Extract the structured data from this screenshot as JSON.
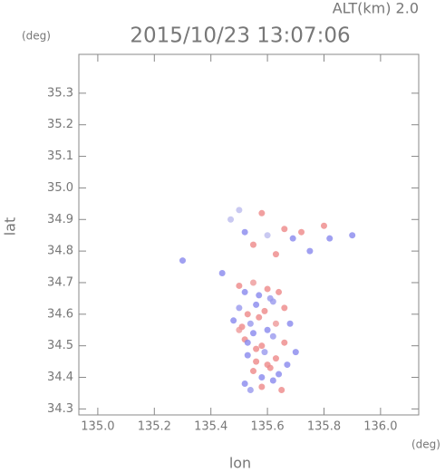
{
  "chart_data": {
    "type": "scatter",
    "title": "2015/10/23 13:07:06",
    "subtitle": "ALT(km) 2.0",
    "x_label": "lon",
    "y_label": "lat",
    "x_unit": "(deg)",
    "y_unit": "(deg)",
    "xlim": [
      134.933,
      136.135
    ],
    "ylim": [
      34.281,
      35.423
    ],
    "xticks": [
      {
        "value": 135,
        "label": "135.0"
      },
      135.2,
      135.4,
      135.6,
      135.8,
      {
        "value": 136,
        "label": "136.0"
      }
    ],
    "yticks": [
      34.3,
      34.4,
      34.5,
      34.6,
      34.7,
      34.8,
      34.9,
      {
        "value": 35,
        "label": "35.0"
      },
      35.1,
      35.2,
      35.3
    ],
    "x": [
      135.3,
      135.44,
      135.47,
      135.5,
      135.52,
      135.55,
      135.58,
      135.6,
      135.63,
      135.66,
      135.69,
      135.72,
      135.75,
      135.8,
      135.82,
      135.9,
      135.5,
      135.52,
      135.55,
      135.57,
      135.6,
      135.62,
      135.64,
      135.5,
      135.53,
      135.56,
      135.59,
      135.61,
      135.66,
      135.48,
      135.51,
      135.54,
      135.57,
      135.6,
      135.63,
      135.52,
      135.55,
      135.58,
      135.62,
      135.66,
      135.7,
      135.53,
      135.56,
      135.59,
      135.63,
      135.67,
      135.55,
      135.58,
      135.61,
      135.64,
      135.52,
      135.54,
      135.58,
      135.62,
      135.65,
      135.5,
      135.53,
      135.56,
      135.6,
      135.68
    ],
    "values": [
      34.77,
      34.73,
      34.9,
      34.93,
      34.86,
      34.82,
      34.92,
      34.85,
      34.79,
      34.87,
      34.84,
      34.86,
      34.8,
      34.88,
      34.84,
      34.85,
      34.69,
      34.67,
      34.7,
      34.66,
      34.68,
      34.64,
      34.67,
      34.62,
      34.6,
      34.63,
      34.61,
      34.65,
      34.62,
      34.58,
      34.56,
      34.57,
      34.59,
      34.55,
      34.57,
      34.52,
      34.54,
      34.5,
      34.53,
      34.51,
      34.48,
      34.47,
      34.45,
      34.48,
      34.46,
      34.44,
      34.42,
      34.4,
      34.43,
      34.41,
      34.38,
      34.36,
      34.37,
      34.39,
      34.36,
      34.55,
      34.51,
      34.49,
      34.44,
      34.57
    ],
    "colors": [
      "#8888ee",
      "#8888ee",
      "#bbbbee",
      "#bbbbee",
      "#8888ee",
      "#ee8888",
      "#ee8888",
      "#bbbbee",
      "#ee8888",
      "#ee8888",
      "#8888ee",
      "#ee8888",
      "#8888ee",
      "#ee8888",
      "#8888ee",
      "#8888ee",
      "#ee8888",
      "#8888ee",
      "#ee9999",
      "#8888ee",
      "#ee8888",
      "#9999ee",
      "#ee8888",
      "#9999ee",
      "#ee8888",
      "#8888ee",
      "#ee8888",
      "#9999ee",
      "#ee8888",
      "#8888ee",
      "#ee8888",
      "#9999ee",
      "#ee8888",
      "#8888ee",
      "#ee9999",
      "#ee8888",
      "#8888ee",
      "#ee8888",
      "#9999ee",
      "#ee8888",
      "#8888ee",
      "#8888ee",
      "#ee8888",
      "#9999ee",
      "#ee8888",
      "#8888ee",
      "#ee8888",
      "#8888ee",
      "#ee8888",
      "#8888ee",
      "#8888ee",
      "#9999ee",
      "#ee8888",
      "#8888ee",
      "#ee8888",
      "#ee9999",
      "#8888ee",
      "#ee8888",
      "#ee8888",
      "#8888ee"
    ]
  }
}
